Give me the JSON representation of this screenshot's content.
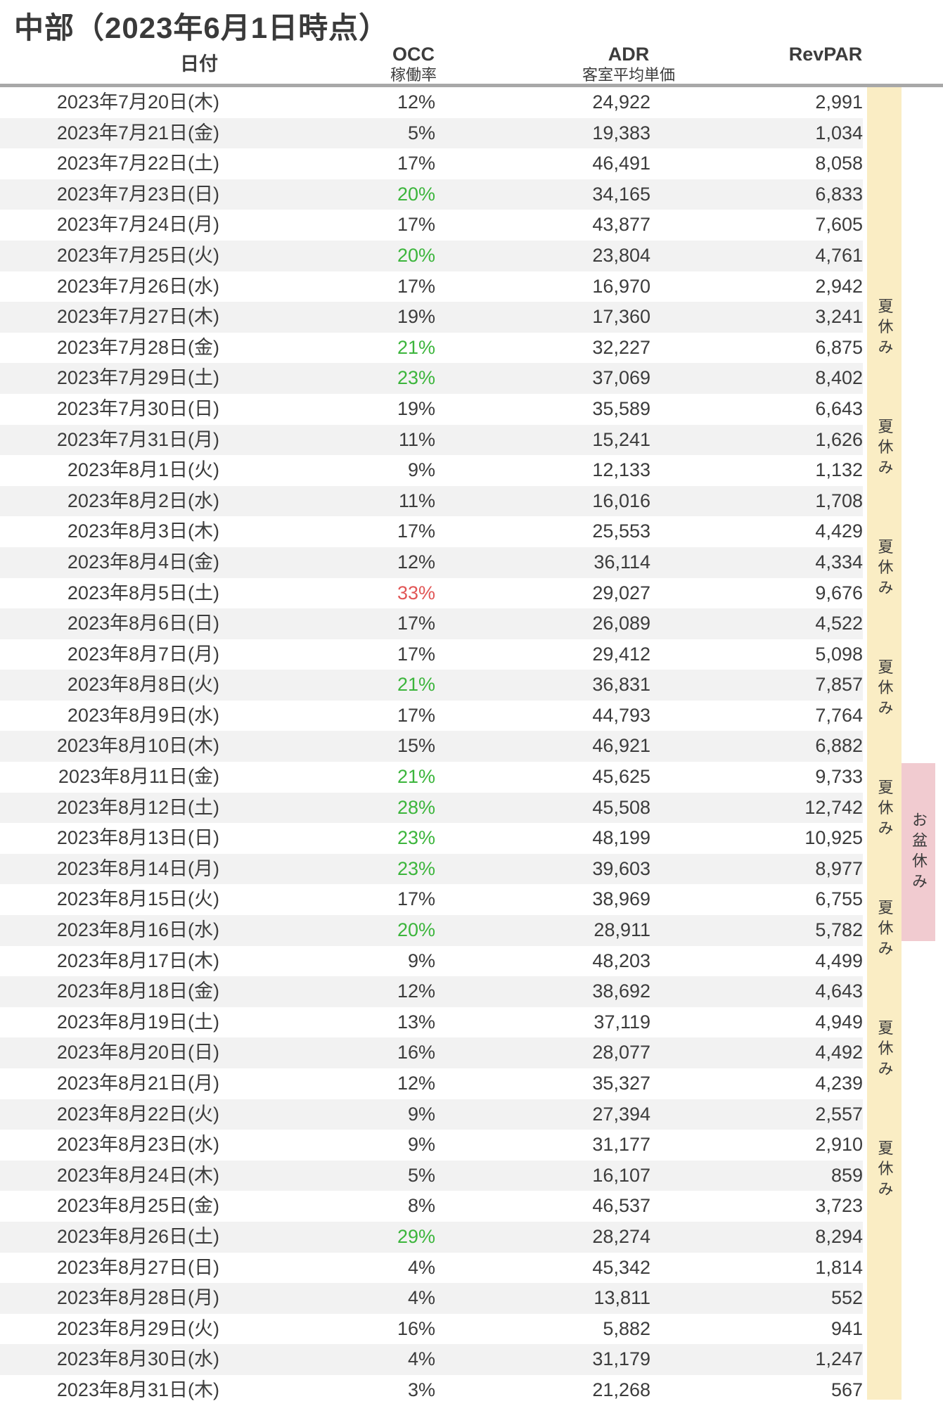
{
  "title": "中部（2023年6月1日時点）",
  "columns": {
    "date": "日付",
    "occ": "OCC",
    "occ_sub": "稼働率",
    "adr": "ADR",
    "adr_sub": "客室平均単価",
    "revpar": "RevPAR"
  },
  "annotations": {
    "summer_label": "夏休み",
    "summer_label_count": 8,
    "obon_label": "お盆休み"
  },
  "colors": {
    "text": "#3c3c3c",
    "green": "#3cb53c",
    "red": "#e15656",
    "stripe": "#f2f2f2",
    "summer_band": "#faedc4",
    "obon_band": "#f1cbd0"
  },
  "rows": [
    {
      "date": "2023年7月20日(木)",
      "occ": "12%",
      "occ_color": "default",
      "adr": "24,922",
      "revpar": "2,991"
    },
    {
      "date": "2023年7月21日(金)",
      "occ": "5%",
      "occ_color": "default",
      "adr": "19,383",
      "revpar": "1,034"
    },
    {
      "date": "2023年7月22日(土)",
      "occ": "17%",
      "occ_color": "default",
      "adr": "46,491",
      "revpar": "8,058"
    },
    {
      "date": "2023年7月23日(日)",
      "occ": "20%",
      "occ_color": "green",
      "adr": "34,165",
      "revpar": "6,833"
    },
    {
      "date": "2023年7月24日(月)",
      "occ": "17%",
      "occ_color": "default",
      "adr": "43,877",
      "revpar": "7,605"
    },
    {
      "date": "2023年7月25日(火)",
      "occ": "20%",
      "occ_color": "green",
      "adr": "23,804",
      "revpar": "4,761"
    },
    {
      "date": "2023年7月26日(水)",
      "occ": "17%",
      "occ_color": "default",
      "adr": "16,970",
      "revpar": "2,942"
    },
    {
      "date": "2023年7月27日(木)",
      "occ": "19%",
      "occ_color": "default",
      "adr": "17,360",
      "revpar": "3,241"
    },
    {
      "date": "2023年7月28日(金)",
      "occ": "21%",
      "occ_color": "green",
      "adr": "32,227",
      "revpar": "6,875"
    },
    {
      "date": "2023年7月29日(土)",
      "occ": "23%",
      "occ_color": "green",
      "adr": "37,069",
      "revpar": "8,402"
    },
    {
      "date": "2023年7月30日(日)",
      "occ": "19%",
      "occ_color": "default",
      "adr": "35,589",
      "revpar": "6,643"
    },
    {
      "date": "2023年7月31日(月)",
      "occ": "11%",
      "occ_color": "default",
      "adr": "15,241",
      "revpar": "1,626"
    },
    {
      "date": "2023年8月1日(火)",
      "occ": "9%",
      "occ_color": "default",
      "adr": "12,133",
      "revpar": "1,132"
    },
    {
      "date": "2023年8月2日(水)",
      "occ": "11%",
      "occ_color": "default",
      "adr": "16,016",
      "revpar": "1,708"
    },
    {
      "date": "2023年8月3日(木)",
      "occ": "17%",
      "occ_color": "default",
      "adr": "25,553",
      "revpar": "4,429"
    },
    {
      "date": "2023年8月4日(金)",
      "occ": "12%",
      "occ_color": "default",
      "adr": "36,114",
      "revpar": "4,334"
    },
    {
      "date": "2023年8月5日(土)",
      "occ": "33%",
      "occ_color": "red",
      "adr": "29,027",
      "revpar": "9,676"
    },
    {
      "date": "2023年8月6日(日)",
      "occ": "17%",
      "occ_color": "default",
      "adr": "26,089",
      "revpar": "4,522"
    },
    {
      "date": "2023年8月7日(月)",
      "occ": "17%",
      "occ_color": "default",
      "adr": "29,412",
      "revpar": "5,098"
    },
    {
      "date": "2023年8月8日(火)",
      "occ": "21%",
      "occ_color": "green",
      "adr": "36,831",
      "revpar": "7,857"
    },
    {
      "date": "2023年8月9日(水)",
      "occ": "17%",
      "occ_color": "default",
      "adr": "44,793",
      "revpar": "7,764"
    },
    {
      "date": "2023年8月10日(木)",
      "occ": "15%",
      "occ_color": "default",
      "adr": "46,921",
      "revpar": "6,882"
    },
    {
      "date": "2023年8月11日(金)",
      "occ": "21%",
      "occ_color": "green",
      "adr": "45,625",
      "revpar": "9,733"
    },
    {
      "date": "2023年8月12日(土)",
      "occ": "28%",
      "occ_color": "green",
      "adr": "45,508",
      "revpar": "12,742"
    },
    {
      "date": "2023年8月13日(日)",
      "occ": "23%",
      "occ_color": "green",
      "adr": "48,199",
      "revpar": "10,925"
    },
    {
      "date": "2023年8月14日(月)",
      "occ": "23%",
      "occ_color": "green",
      "adr": "39,603",
      "revpar": "8,977"
    },
    {
      "date": "2023年8月15日(火)",
      "occ": "17%",
      "occ_color": "default",
      "adr": "38,969",
      "revpar": "6,755"
    },
    {
      "date": "2023年8月16日(水)",
      "occ": "20%",
      "occ_color": "green",
      "adr": "28,911",
      "revpar": "5,782"
    },
    {
      "date": "2023年8月17日(木)",
      "occ": "9%",
      "occ_color": "default",
      "adr": "48,203",
      "revpar": "4,499"
    },
    {
      "date": "2023年8月18日(金)",
      "occ": "12%",
      "occ_color": "default",
      "adr": "38,692",
      "revpar": "4,643"
    },
    {
      "date": "2023年8月19日(土)",
      "occ": "13%",
      "occ_color": "default",
      "adr": "37,119",
      "revpar": "4,949"
    },
    {
      "date": "2023年8月20日(日)",
      "occ": "16%",
      "occ_color": "default",
      "adr": "28,077",
      "revpar": "4,492"
    },
    {
      "date": "2023年8月21日(月)",
      "occ": "12%",
      "occ_color": "default",
      "adr": "35,327",
      "revpar": "4,239"
    },
    {
      "date": "2023年8月22日(火)",
      "occ": "9%",
      "occ_color": "default",
      "adr": "27,394",
      "revpar": "2,557"
    },
    {
      "date": "2023年8月23日(水)",
      "occ": "9%",
      "occ_color": "default",
      "adr": "31,177",
      "revpar": "2,910"
    },
    {
      "date": "2023年8月24日(木)",
      "occ": "5%",
      "occ_color": "default",
      "adr": "16,107",
      "revpar": "859"
    },
    {
      "date": "2023年8月25日(金)",
      "occ": "8%",
      "occ_color": "default",
      "adr": "46,537",
      "revpar": "3,723"
    },
    {
      "date": "2023年8月26日(土)",
      "occ": "29%",
      "occ_color": "green",
      "adr": "28,274",
      "revpar": "8,294"
    },
    {
      "date": "2023年8月27日(日)",
      "occ": "4%",
      "occ_color": "default",
      "adr": "45,342",
      "revpar": "1,814"
    },
    {
      "date": "2023年8月28日(月)",
      "occ": "4%",
      "occ_color": "default",
      "adr": "13,811",
      "revpar": "552"
    },
    {
      "date": "2023年8月29日(火)",
      "occ": "16%",
      "occ_color": "default",
      "adr": "5,882",
      "revpar": "941"
    },
    {
      "date": "2023年8月30日(水)",
      "occ": "4%",
      "occ_color": "default",
      "adr": "31,179",
      "revpar": "1,247"
    },
    {
      "date": "2023年8月31日(木)",
      "occ": "3%",
      "occ_color": "default",
      "adr": "21,268",
      "revpar": "567"
    }
  ]
}
